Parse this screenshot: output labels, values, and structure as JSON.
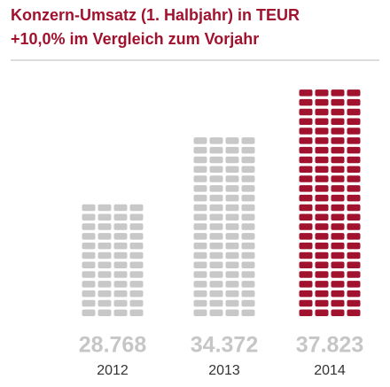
{
  "chart_data": {
    "type": "pictogram",
    "title": "Konzern-Umsatz (1. Halbjahr) in TEUR",
    "subtitle": "+10,0% im Vergleich zum Vorjahr",
    "categories": [
      "2012",
      "2013",
      "2014"
    ],
    "values": [
      28768,
      34372,
      37823
    ],
    "value_labels": [
      "28.768",
      "34.372",
      "37.823"
    ],
    "colors": [
      "#c8c8c8",
      "#c8c8c8",
      "#a0122e"
    ],
    "ylim": [
      20000,
      40000
    ]
  }
}
